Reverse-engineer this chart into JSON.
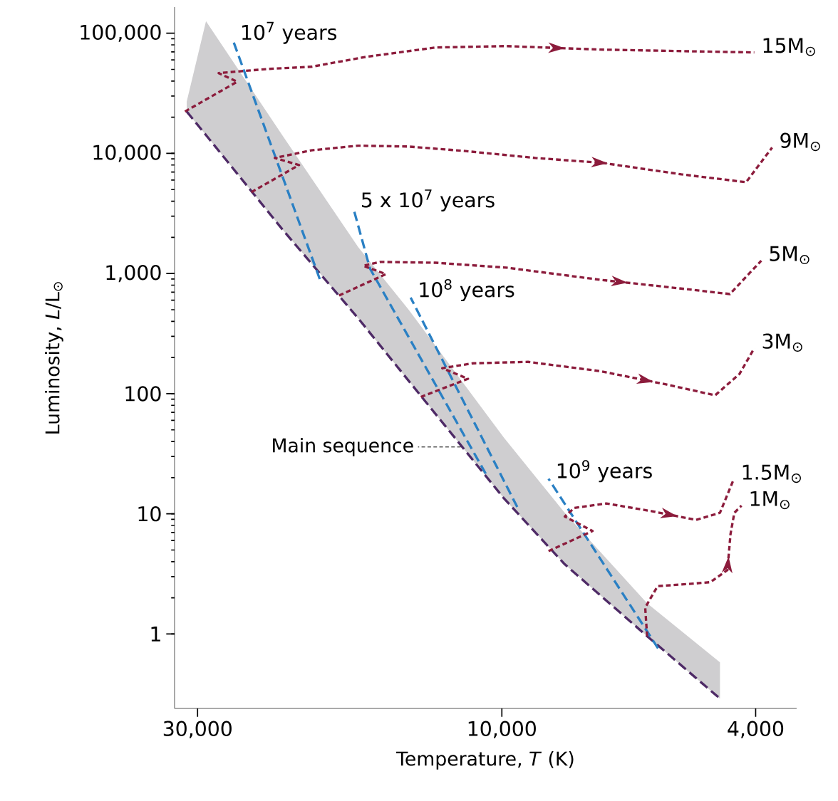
{
  "chart_data": {
    "type": "line",
    "xlabel": "Temperature, *T* (K)",
    "ylabel": "Luminosity, *L*/L$_{⊙}$",
    "log": "xy",
    "xlim": [
      32600,
      3450
    ],
    "ylim": [
      0.24,
      165000
    ],
    "xticks": [
      {
        "value": 30000,
        "label": "30,000"
      },
      {
        "value": 10000,
        "label": "10,000"
      },
      {
        "value": 4000,
        "label": "4,000"
      }
    ],
    "yticks": [
      {
        "value": 1,
        "label": "1"
      },
      {
        "value": 10,
        "label": "10"
      },
      {
        "value": 100,
        "label": "100"
      },
      {
        "value": 1000,
        "label": "1,000"
      },
      {
        "value": 10000,
        "label": "10,000"
      },
      {
        "value": 100000,
        "label": "100,000"
      }
    ],
    "grid": false,
    "annotations": [
      {
        "text": "Main sequence",
        "x": 11600,
        "y": 36
      }
    ],
    "series": [
      {
        "type": "line",
        "color": "#4e2a66",
        "line_style": "dashed",
        "x": [
          31200,
          29100,
          22100,
          16800,
          14000,
          9920,
          7970,
          5920,
          4550
        ],
        "values": [
          22300,
          14200,
          2340,
          424,
          128,
          13.4,
          3.8,
          0.96,
          0.29
        ],
        "lower": [
          22300,
          14200,
          2340,
          424,
          128,
          13.4,
          3.8,
          0.96,
          0.29
        ],
        "upper": [
          27000,
          126000,
          14200,
          1660,
          500,
          42.8,
          10.2,
          1.8,
          0.58
        ]
      },
      {
        "type": "line",
        "name": "10$^{7}$ years",
        "color": "#2a80c4",
        "line_style": "dashed",
        "x": [
          19300,
          26400
        ],
        "values": [
          899,
          87300
        ]
      },
      {
        "type": "line",
        "name": "5 x 10$^{7}$ years",
        "color": "#2a80c4",
        "line_style": "dashed",
        "x": [
          10600,
          16100,
          17100
        ],
        "values": [
          21.6,
          1100,
          3520
        ]
      },
      {
        "type": "line",
        "name": "10$^{8}$ years",
        "color": "#2a80c4",
        "line_style": "dashed",
        "x": [
          9460,
          13900
        ],
        "values": [
          11.4,
          630
        ]
      },
      {
        "type": "line",
        "name": "10$^{9}$ years",
        "color": "#2a80c4",
        "line_style": "dashed",
        "x": [
          5690,
          8450
        ],
        "values": [
          0.76,
          19.6
        ]
      },
      {
        "type": "line",
        "name": "15M$_{⊙}$",
        "color": "#8c1c3c",
        "line_style": "dotted",
        "x": [
          31400,
          26000,
          27800,
          23200,
          19900,
          16300,
          12700,
          9840,
          7000,
          4020
        ],
        "values": [
          22300,
          39500,
          46600,
          50500,
          52600,
          63700,
          76100,
          78200,
          73100,
          69200
        ]
      },
      {
        "type": "line",
        "name": "9M$_{⊙}$",
        "color": "#8c1c3c",
        "line_style": "dotted",
        "x": [
          24700,
          20800,
          22700,
          19900,
          16800,
          14000,
          11500,
          8860,
          6950,
          5230,
          4140,
          3770
        ],
        "values": [
          4760,
          8000,
          9160,
          10600,
          11600,
          11400,
          10500,
          9160,
          8330,
          6690,
          5760,
          11200
        ]
      },
      {
        "type": "line",
        "name": "5M$_{⊙}$",
        "color": "#8c1c3c",
        "line_style": "dotted",
        "x": [
          18000,
          15200,
          16500,
          15500,
          12700,
          9840,
          7010,
          5510,
          4390,
          3920
        ],
        "values": [
          656,
          989,
          1160,
          1250,
          1230,
          1120,
          887,
          773,
          675,
          1280
        ]
      },
      {
        "type": "line",
        "name": "3M$_{⊙}$",
        "color": "#8c1c3c",
        "line_style": "dotted",
        "x": [
          13400,
          11300,
          12400,
          11100,
          9100,
          7010,
          5510,
          4630,
          4240,
          4020
        ],
        "values": [
          94,
          133,
          163,
          179,
          184,
          154,
          119,
          97,
          146,
          239
        ]
      },
      {
        "type": "line",
        "name": "1.5M$_{⊙}$",
        "color": "#8c1c3c",
        "line_style": "dotted",
        "x": [
          8450,
          7210,
          7970,
          7700,
          6860,
          5810,
          4960,
          4550,
          4330
        ],
        "values": [
          4.9,
          7.2,
          9.5,
          11.2,
          12.2,
          10.5,
          8.9,
          10.2,
          19.4
        ]
      },
      {
        "type": "line",
        "name": "1M$_{⊙}$",
        "color": "#8c1c3c",
        "line_style": "dotted",
        "x": [
          5920,
          5960,
          5700,
          5130,
          4710,
          4430,
          4380,
          4320,
          4210
        ],
        "values": [
          0.96,
          1.66,
          2.5,
          2.6,
          2.7,
          3.4,
          6.8,
          10.2,
          11.7
        ]
      }
    ]
  }
}
